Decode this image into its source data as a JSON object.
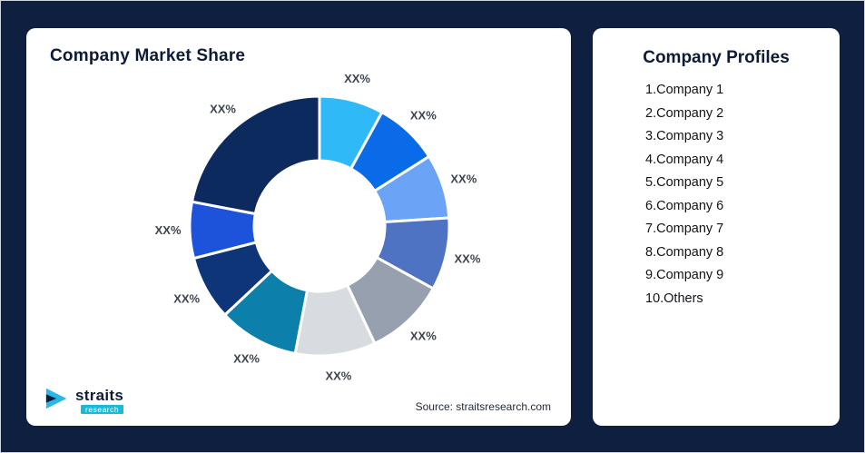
{
  "page": {
    "background": "#0e1f40"
  },
  "left_card": {
    "title": "Company Market Share",
    "source": "Source: straitsresearch.com",
    "logo": {
      "name": "straits",
      "sub": "research"
    }
  },
  "right_card": {
    "title": "Company Profiles",
    "items": [
      "1.Company 1",
      "2.Company 2",
      "3.Company 3",
      "4.Company 4",
      "5.Company 5",
      "6.Company 6",
      "7.Company 7",
      "8.Company 8",
      "9.Company 9",
      "10.Others"
    ]
  },
  "chart_data": {
    "type": "pie",
    "subtype": "donut",
    "title": "Company Market Share",
    "labels": [
      "Company 1",
      "Company 2",
      "Company 3",
      "Company 4",
      "Company 5",
      "Company 6",
      "Company 7",
      "Company 8",
      "Company 9",
      "Others"
    ],
    "values": [
      8,
      8,
      8,
      9,
      10,
      10,
      10,
      8,
      7,
      22
    ],
    "values_note": "estimated from arc sizes; actual values masked as XX% in image",
    "display_labels": [
      "XX%",
      "XX%",
      "XX%",
      "XX%",
      "XX%",
      "XX%",
      "XX%",
      "XX%",
      "XX%",
      "XX%"
    ],
    "colors": [
      "#2fb9f6",
      "#0a6be8",
      "#6ba3f6",
      "#4e73c2",
      "#97a0ae",
      "#d8dbdf",
      "#0c80aa",
      "#0e3577",
      "#1d53db",
      "#0d2a5e"
    ],
    "inner_radius_ratio": 0.5,
    "start_angle_deg": 0,
    "legend_position": "none"
  }
}
